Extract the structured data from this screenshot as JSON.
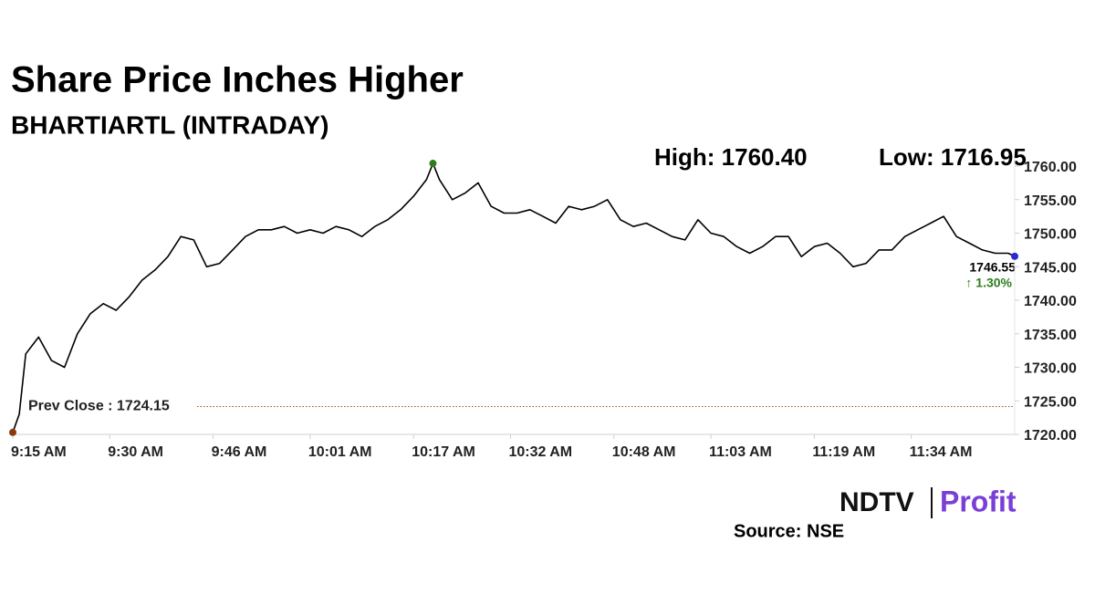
{
  "chart_data": {
    "type": "line",
    "title": "Share Price Inches Higher",
    "subtitle": "BHARTIARTL (INTRADAY)",
    "high_label": "High: 1760.40",
    "low_label": "Low: 1716.95",
    "prev_close": {
      "value": 1724.15,
      "label": "Prev Close : 1724.15"
    },
    "last_label": "1746.55",
    "change_label": "↑ 1.30%",
    "source": "Source: NSE",
    "logo": [
      "NDTV",
      "Profit"
    ],
    "x": [
      "9:15",
      "9:16",
      "9:17",
      "9:19",
      "9:21",
      "9:23",
      "9:25",
      "9:27",
      "9:29",
      "9:31",
      "9:33",
      "9:35",
      "9:37",
      "9:39",
      "9:41",
      "9:43",
      "9:45",
      "9:47",
      "9:49",
      "9:51",
      "9:53",
      "9:55",
      "9:57",
      "9:59",
      "10:01",
      "10:03",
      "10:05",
      "10:07",
      "10:09",
      "10:11",
      "10:13",
      "10:15",
      "10:17",
      "10:19",
      "10:20",
      "10:21",
      "10:23",
      "10:25",
      "10:27",
      "10:29",
      "10:31",
      "10:33",
      "10:35",
      "10:37",
      "10:39",
      "10:41",
      "10:43",
      "10:45",
      "10:47",
      "10:49",
      "10:51",
      "10:53",
      "10:55",
      "10:57",
      "10:59",
      "11:01",
      "11:03",
      "11:05",
      "11:07",
      "11:09",
      "11:11",
      "11:13",
      "11:15",
      "11:17",
      "11:19",
      "11:21",
      "11:23",
      "11:25",
      "11:27",
      "11:29",
      "11:31",
      "11:33",
      "11:35",
      "11:37",
      "11:39",
      "11:41",
      "11:43",
      "11:45",
      "11:47",
      "11:49",
      "11:50"
    ],
    "series": [
      {
        "name": "BHARTIARTL",
        "color": "#000000",
        "values": [
          1720.3,
          1723,
          1732,
          1734.5,
          1731,
          1730,
          1735,
          1738,
          1739.5,
          1738.5,
          1740.5,
          1743,
          1744.5,
          1746.5,
          1749.5,
          1749,
          1745,
          1745.5,
          1747.5,
          1749.5,
          1750.5,
          1750.5,
          1751,
          1750,
          1750.5,
          1750,
          1751,
          1750.5,
          1749.5,
          1751,
          1752,
          1753.5,
          1755.5,
          1758,
          1760.4,
          1758,
          1755,
          1756,
          1757.5,
          1754,
          1753,
          1753,
          1753.5,
          1752.5,
          1751.5,
          1754,
          1753.5,
          1754,
          1755,
          1752,
          1751,
          1751.5,
          1750.5,
          1749.5,
          1749,
          1752,
          1750,
          1749.5,
          1748,
          1747,
          1748,
          1749.5,
          1749.5,
          1746.5,
          1748,
          1748.5,
          1747,
          1745,
          1745.5,
          1747.5,
          1747.5,
          1749.5,
          1750.5,
          1751.5,
          1752.5,
          1749.5,
          1748.5,
          1747.5,
          1747,
          1747,
          1746.55
        ]
      }
    ],
    "xlim": [
      "9:15",
      "11:50"
    ],
    "xticks": [
      "9:15 AM",
      "9:30 AM",
      "9:46 AM",
      "10:01 AM",
      "10:17 AM",
      "10:32 AM",
      "10:48 AM",
      "11:03 AM",
      "11:19 AM",
      "11:34 AM"
    ],
    "ylim": [
      1720,
      1760
    ],
    "yticks": [
      {
        "value": 1720,
        "label": "1720.00"
      },
      {
        "value": 1725,
        "label": "1725.00"
      },
      {
        "value": 1730,
        "label": "1730.00"
      },
      {
        "value": 1735,
        "label": "1735.00"
      },
      {
        "value": 1740,
        "label": "1740.00"
      },
      {
        "value": 1745,
        "label": "1745.00"
      },
      {
        "value": 1750,
        "label": "1750.00"
      },
      {
        "value": 1755,
        "label": "1755.00"
      },
      {
        "value": 1760,
        "label": "1760.00"
      }
    ],
    "marker_colors": {
      "first": "#8b3a0e",
      "high": "#2e7d1e",
      "last": "#2b2bd6"
    }
  }
}
